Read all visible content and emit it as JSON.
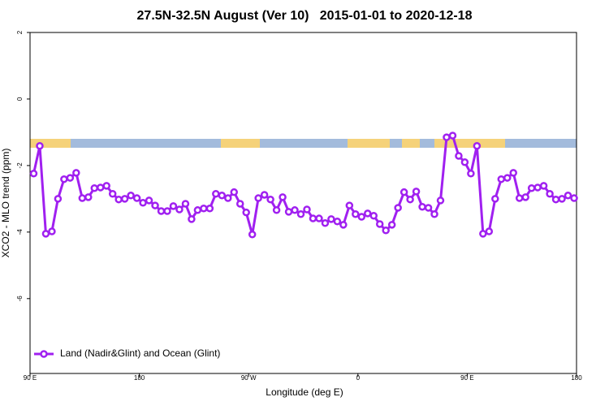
{
  "chart_data": {
    "type": "line",
    "title": "27.5N-32.5N August (Ver 10)   2015-01-01 to 2020-12-18",
    "x_label": "Longitude (deg E)",
    "y_label": "XCO2 - MLO trend (ppm)",
    "xlim": [
      90,
      540
    ],
    "ylim": [
      -8.25,
      2
    ],
    "xticks": [
      {
        "value": 90,
        "label": "90 E"
      },
      180,
      {
        "value": 270,
        "label": "90 W"
      },
      {
        "value": 360,
        "label": "0"
      },
      {
        "value": 450,
        "label": "90 E"
      },
      {
        "value": 540,
        "label": "180"
      }
    ],
    "yticks": [
      2,
      0,
      -2,
      -4,
      -6
    ],
    "grid": false,
    "legend_position": "bottom-left",
    "x": [
      93,
      98,
      103,
      108,
      113,
      118,
      123,
      128,
      133,
      138,
      143,
      148,
      153,
      158,
      163,
      168,
      173,
      178,
      183,
      188,
      193,
      198,
      203,
      208,
      213,
      218,
      223,
      228,
      233,
      238,
      243,
      248,
      253,
      258,
      263,
      268,
      273,
      278,
      283,
      288,
      293,
      298,
      303,
      308,
      313,
      318,
      323,
      328,
      333,
      338,
      343,
      348,
      353,
      358,
      363,
      368,
      373,
      378,
      383,
      388,
      393,
      398,
      403,
      408,
      413,
      418,
      423,
      428,
      433,
      438,
      443,
      448,
      453,
      458,
      463,
      468,
      473,
      478,
      483,
      488,
      493,
      498,
      503,
      508,
      513,
      518,
      523,
      528,
      533,
      538
    ],
    "series": [
      {
        "name": "Land (Nadir&Glint) and Ocean (Glint)",
        "color": "#a020f0",
        "values": [
          -2.24,
          -1.41,
          -4.05,
          -3.98,
          -3.0,
          -2.41,
          -2.37,
          -2.22,
          -2.98,
          -2.95,
          -2.68,
          -2.66,
          -2.61,
          -2.85,
          -3.02,
          -3.0,
          -2.9,
          -2.98,
          -3.12,
          -3.05,
          -3.2,
          -3.37,
          -3.37,
          -3.22,
          -3.32,
          -3.15,
          -3.61,
          -3.34,
          -3.29,
          -3.29,
          -2.85,
          -2.9,
          -2.98,
          -2.8,
          -3.15,
          -3.41,
          -4.07,
          -2.98,
          -2.88,
          -3.02,
          -3.34,
          -2.95,
          -3.39,
          -3.34,
          -3.46,
          -3.32,
          -3.59,
          -3.59,
          -3.73,
          -3.61,
          -3.68,
          -3.78,
          -3.2,
          -3.46,
          -3.54,
          -3.44,
          -3.51,
          -3.76,
          -3.95,
          -3.78,
          -3.27,
          -2.8,
          -3.02,
          -2.78,
          -3.24,
          -3.27,
          -3.46,
          -3.05,
          -1.15,
          -1.1,
          -1.71,
          -1.9,
          -2.24,
          -1.41,
          -4.05,
          -3.98,
          -3.0,
          -2.41,
          -2.37,
          -2.22,
          -2.98,
          -2.95,
          -2.68,
          -2.66,
          -2.61,
          -2.85,
          -3.02,
          -3.0,
          -2.9,
          -2.98
        ]
      }
    ]
  }
}
